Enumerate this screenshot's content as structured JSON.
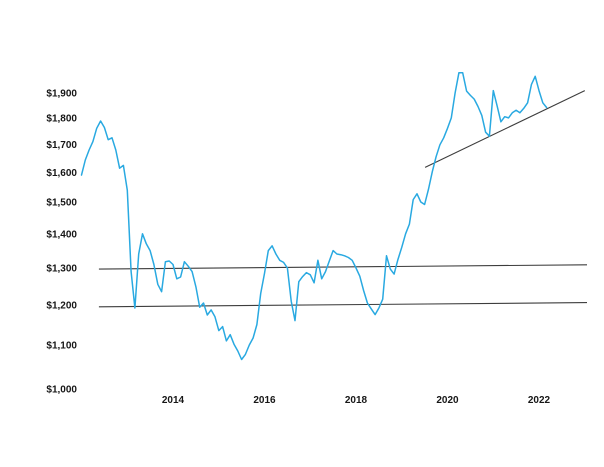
{
  "chart_data": {
    "type": "line",
    "title": "",
    "xlabel": "",
    "ylabel": "",
    "grid": false,
    "legend": "none",
    "background_color": "#ffffff",
    "accent_color": "#29a9e1",
    "y_axis": {
      "scale": "log",
      "range": [
        1000,
        2000
      ],
      "tick_prefix": "$",
      "ticks": [
        {
          "label": "$1,900",
          "value": 1900
        },
        {
          "label": "$1,800",
          "value": 1800
        },
        {
          "label": "$1,700",
          "value": 1700
        },
        {
          "label": "$1,600",
          "value": 1600
        },
        {
          "label": "$1,500",
          "value": 1500
        },
        {
          "label": "$1,400",
          "value": 1400
        },
        {
          "label": "$1,300",
          "value": 1300
        },
        {
          "label": "$1,200",
          "value": 1200
        },
        {
          "label": "$1,100",
          "value": 1100
        },
        {
          "label": "$1,000",
          "value": 1000
        }
      ]
    },
    "x_axis": {
      "range": [
        2012,
        2023
      ],
      "ticks": [
        {
          "label": "2014",
          "value": 2014
        },
        {
          "label": "2016",
          "value": 2016
        },
        {
          "label": "2018",
          "value": 2018
        },
        {
          "label": "2020",
          "value": 2020
        },
        {
          "label": "2022",
          "value": 2022
        }
      ]
    },
    "series": [
      {
        "name": "gold-price-monthly-usd",
        "color": "#29a9e1",
        "start_year": 2012,
        "points_per_year": 12,
        "prices": [
          1590,
          1643,
          1679,
          1710,
          1760,
          1788,
          1763,
          1717,
          1724,
          1679,
          1614,
          1624,
          1539,
          1290,
          1192,
          1340,
          1400,
          1370,
          1350,
          1310,
          1255,
          1235,
          1318,
          1320,
          1310,
          1270,
          1275,
          1318,
          1305,
          1290,
          1248,
          1194,
          1205,
          1174,
          1187,
          1170,
          1135,
          1145,
          1110,
          1125,
          1102,
          1086,
          1066,
          1078,
          1100,
          1117,
          1150,
          1230,
          1285,
          1350,
          1364,
          1340,
          1322,
          1316,
          1300,
          1210,
          1160,
          1262,
          1276,
          1287,
          1281,
          1259,
          1322,
          1270,
          1290,
          1320,
          1350,
          1340,
          1338,
          1335,
          1330,
          1322,
          1300,
          1277,
          1238,
          1205,
          1190,
          1175,
          1192,
          1215,
          1335,
          1297,
          1283,
          1324,
          1360,
          1400,
          1430,
          1508,
          1527,
          1500,
          1492,
          1541,
          1602,
          1655,
          1698,
          1724,
          1760,
          1800,
          1900,
          1985,
          1985,
          1908,
          1890,
          1875,
          1845,
          1810,
          1745,
          1730,
          1910,
          1848,
          1785,
          1805,
          1800,
          1820,
          1830,
          1820,
          1838,
          1860,
          1935,
          1970,
          1910,
          1860,
          1841
        ]
      }
    ],
    "overlay_lines": [
      {
        "name": "resistance-line-1300",
        "color": "#3d3d3d",
        "from": {
          "year": 2012.38,
          "price": 1297
        },
        "to": {
          "year": 2023.05,
          "price": 1309
        }
      },
      {
        "name": "support-line-1200",
        "color": "#3d3d3d",
        "from": {
          "year": 2012.38,
          "price": 1195
        },
        "to": {
          "year": 2023.05,
          "price": 1206
        }
      },
      {
        "name": "uptrend-line",
        "color": "#3d3d3d",
        "from": {
          "year": 2019.51,
          "price": 1617
        },
        "to": {
          "year": 2023.0,
          "price": 1910
        }
      }
    ]
  }
}
